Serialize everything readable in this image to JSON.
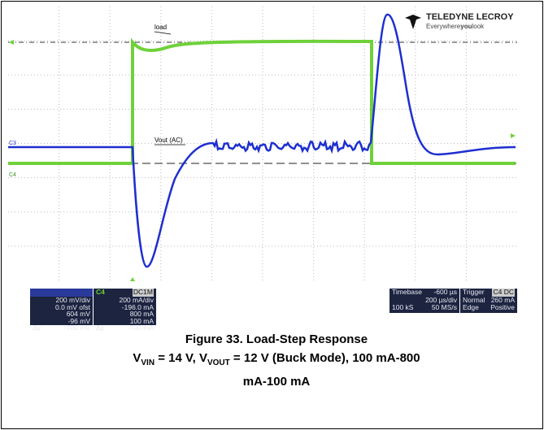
{
  "scope": {
    "logo": {
      "brand": "TELEDYNE LECROY",
      "tagline_pre": "Everywhere",
      "tagline_bold": "you",
      "tagline_post": "look"
    },
    "trace_labels": {
      "load": "load",
      "vout": "Vout (AC)",
      "c3": "C3",
      "c4": "C4"
    },
    "channels": [
      {
        "header": "",
        "rows": [
          [
            "",
            "200 mV/div"
          ],
          [
            "",
            "0.0 mV ofst"
          ],
          [
            "",
            "604 mV"
          ],
          [
            "",
            "-96 mV"
          ],
          [
            "Δy",
            "-700 mV"
          ]
        ]
      },
      {
        "header": "C4",
        "tag": "DC1M",
        "rows": [
          [
            "",
            "200 mA/div"
          ],
          [
            "",
            "-196.0 mA"
          ],
          [
            "",
            "800 mA"
          ],
          [
            "",
            "100 mA"
          ],
          [
            "Δy",
            "-700 mA"
          ]
        ]
      }
    ],
    "timebase": {
      "title": "Timebase",
      "offset": "-600 µs",
      "rows": [
        [
          "",
          "200 µs/div"
        ],
        [
          "100 kS",
          "50 MS/s"
        ]
      ]
    },
    "trigger": {
      "title": "Trigger",
      "tag": "C4 DC",
      "rows": [
        [
          "Normal",
          "260 mA"
        ],
        [
          "Edge",
          "Positive"
        ]
      ]
    }
  },
  "caption": {
    "line1": "Figure 33. Load-Step Response",
    "v1": "V",
    "s1": "VIN",
    "mid": " = 14 V, V",
    "s2": "VOUT",
    "rest": " = 12 V (Buck Mode), 100 mA-800 mA-100 mA"
  }
}
